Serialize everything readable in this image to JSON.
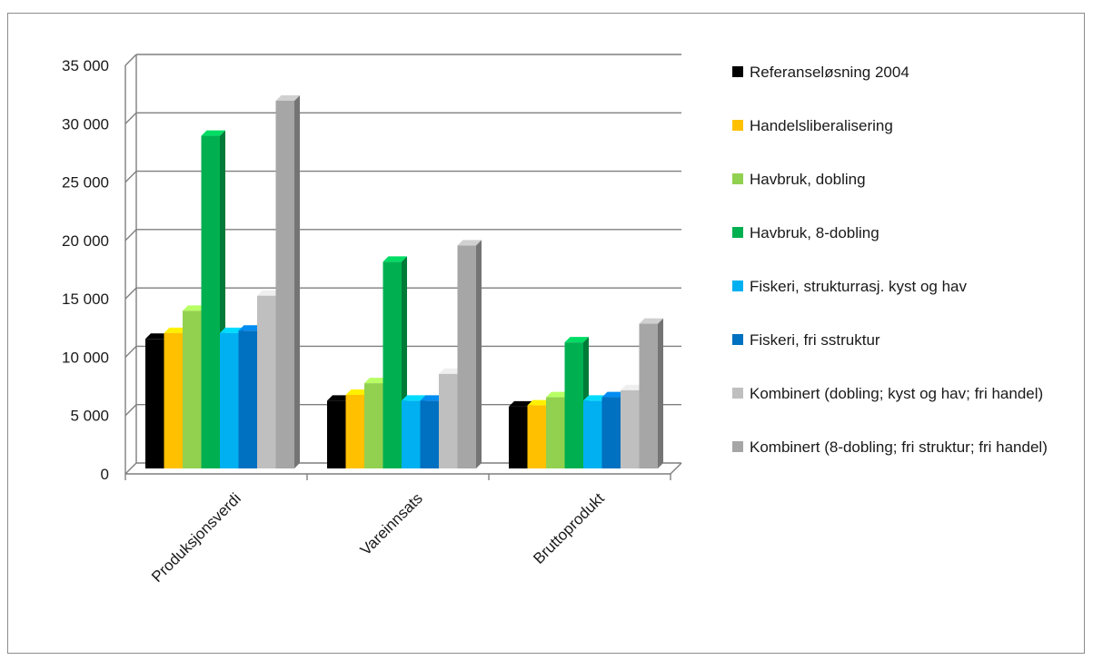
{
  "chart_data": {
    "type": "bar",
    "categories": [
      "Produksjonsverdi",
      "Vareinnsats",
      "Bruttoprodukt"
    ],
    "series": [
      {
        "name": "Referanseløsning 2004",
        "color": "#000000",
        "values": [
          11100,
          5800,
          5300
        ]
      },
      {
        "name": "Handelsliberalisering",
        "color": "#FFC000",
        "values": [
          11600,
          6300,
          5400
        ]
      },
      {
        "name": "Havbruk, dobling",
        "color": "#92D050",
        "values": [
          13500,
          7300,
          6100
        ]
      },
      {
        "name": "Havbruk, 8-dobling",
        "color": "#00B050",
        "values": [
          28500,
          17700,
          10800
        ]
      },
      {
        "name": "Fiskeri, strukturrasj. kyst og hav",
        "color": "#00B0F0",
        "values": [
          11600,
          5800,
          5800
        ]
      },
      {
        "name": "Fiskeri, fri sstruktur",
        "color": "#0070C0",
        "values": [
          11800,
          5800,
          6100
        ]
      },
      {
        "name": "Kombinert (dobling; kyst og hav; fri handel)",
        "color": "#BFBFBF",
        "values": [
          14800,
          8100,
          6700
        ]
      },
      {
        "name": "Kombinert (8-dobling; fri struktur; fri handel)",
        "color": "#A6A6A6",
        "values": [
          31500,
          19100,
          12400
        ]
      }
    ],
    "yticks": [
      "0",
      "5 000",
      "10 000",
      "15 000",
      "20 000",
      "25 000",
      "30 000",
      "35 000"
    ],
    "ylim": [
      0,
      35000
    ],
    "grid": true,
    "legend": "right",
    "style": "3d-clustered-column"
  }
}
